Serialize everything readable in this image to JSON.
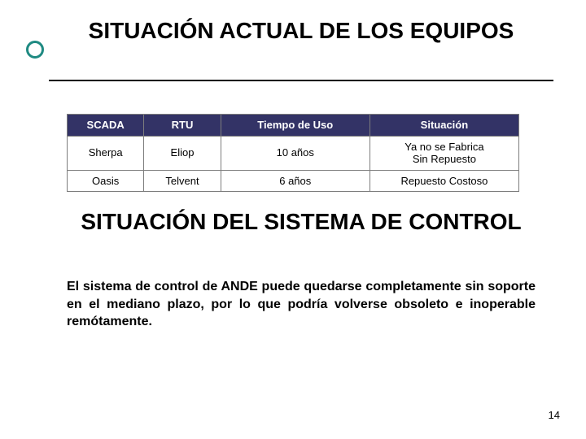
{
  "colors": {
    "bullet_ring": "#1f8a82",
    "table_border": "#7d7d7d",
    "header_bg": "#333366",
    "header_fg": "#ffffff",
    "text": "#000000",
    "background": "#ffffff"
  },
  "title1": "SITUACIÓN ACTUAL DE LOS EQUIPOS",
  "table": {
    "col_widths": [
      "17%",
      "17%",
      "33%",
      "33%"
    ],
    "columns": [
      "SCADA",
      "RTU",
      "Tiempo de Uso",
      "Situación"
    ],
    "rows": [
      [
        "Sherpa",
        "Eliop",
        "10 años",
        "Ya no se Fabrica\nSin Repuesto"
      ],
      [
        "Oasis",
        "Telvent",
        "6 años",
        "Repuesto Costoso"
      ]
    ]
  },
  "title2": "SITUACIÓN DEL SISTEMA DE CONTROL",
  "body": "El sistema de control de ANDE puede quedarse completamente sin soporte en el mediano plazo, por lo que podría volverse obsoleto e inoperable remótamente.",
  "page_number": "14"
}
